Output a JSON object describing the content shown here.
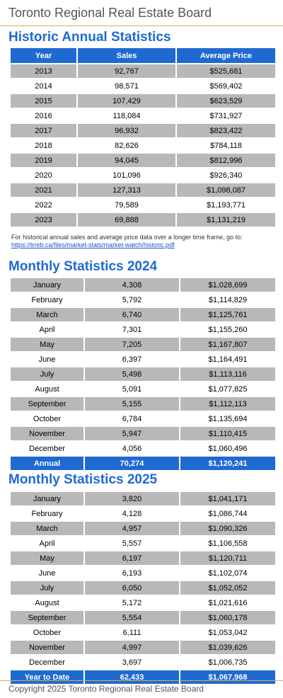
{
  "header": {
    "title": "Toronto Regional Real Estate Board"
  },
  "historic": {
    "heading": "Historic Annual Statistics",
    "columns": [
      "Year",
      "Sales",
      "Average Price"
    ],
    "rows": [
      [
        "2013",
        "92,767",
        "$525,681"
      ],
      [
        "2014",
        "98,571",
        "$569,402"
      ],
      [
        "2015",
        "107,429",
        "$623,529"
      ],
      [
        "2016",
        "118,084",
        "$731,927"
      ],
      [
        "2017",
        "96,932",
        "$823,422"
      ],
      [
        "2018",
        "82,626",
        "$784,118"
      ],
      [
        "2019",
        "94,045",
        "$812,996"
      ],
      [
        "2020",
        "101,096",
        "$926,340"
      ],
      [
        "2021",
        "127,313",
        "$1,098,087"
      ],
      [
        "2022",
        "79,589",
        "$1,193,771"
      ],
      [
        "2023",
        "69,888",
        "$1,131,219"
      ]
    ],
    "note": "For historical annual sales and average price data over a longer time frame, go to:",
    "link": "https://trreb.ca/files/market-stats/market-watch/historic.pdf"
  },
  "monthly2024": {
    "heading": "Monthly Statistics 2024",
    "rows": [
      [
        "January",
        "4,308",
        "$1,028,699"
      ],
      [
        "February",
        "5,792",
        "$1,114,829"
      ],
      [
        "March",
        "6,740",
        "$1,125,761"
      ],
      [
        "April",
        "7,301",
        "$1,155,260"
      ],
      [
        "May",
        "7,205",
        "$1,167,807"
      ],
      [
        "June",
        "6,397",
        "$1,164,491"
      ],
      [
        "July",
        "5,498",
        "$1,113,116"
      ],
      [
        "August",
        "5,091",
        "$1,077,825"
      ],
      [
        "September",
        "5,155",
        "$1,112,113"
      ],
      [
        "October",
        "6,784",
        "$1,135,694"
      ],
      [
        "November",
        "5,947",
        "$1,110,415"
      ],
      [
        "December",
        "4,056",
        "$1,060,496"
      ]
    ],
    "total": [
      "Annual",
      "70,274",
      "$1,120,241"
    ]
  },
  "monthly2025": {
    "heading": "Monthly Statistics 2025",
    "rows": [
      [
        "January",
        "3,820",
        "$1,041,171"
      ],
      [
        "February",
        "4,128",
        "$1,086,744"
      ],
      [
        "March",
        "4,957",
        "$1,090,326"
      ],
      [
        "April",
        "5,557",
        "$1,106,558"
      ],
      [
        "May",
        "6,197",
        "$1,120,711"
      ],
      [
        "June",
        "6,193",
        "$1,102,074"
      ],
      [
        "July",
        "6,050",
        "$1,052,052"
      ],
      [
        "August",
        "5,172",
        "$1,021,616"
      ],
      [
        "September",
        "5,554",
        "$1,060,178"
      ],
      [
        "October",
        "6,111",
        "$1,053,042"
      ],
      [
        "November",
        "4,997",
        "$1,039,626"
      ],
      [
        "December",
        "3,697",
        "$1,006,735"
      ]
    ],
    "total": [
      "Year to Date",
      "62,433",
      "$1,067,968"
    ]
  },
  "colors": {
    "accent": "#1f6ad1",
    "shade": "#b8b8b8",
    "rule": "#d9b04c"
  },
  "footer": {
    "copyright": "Copyright 2025 Toronto Regional Real Estate Board"
  }
}
